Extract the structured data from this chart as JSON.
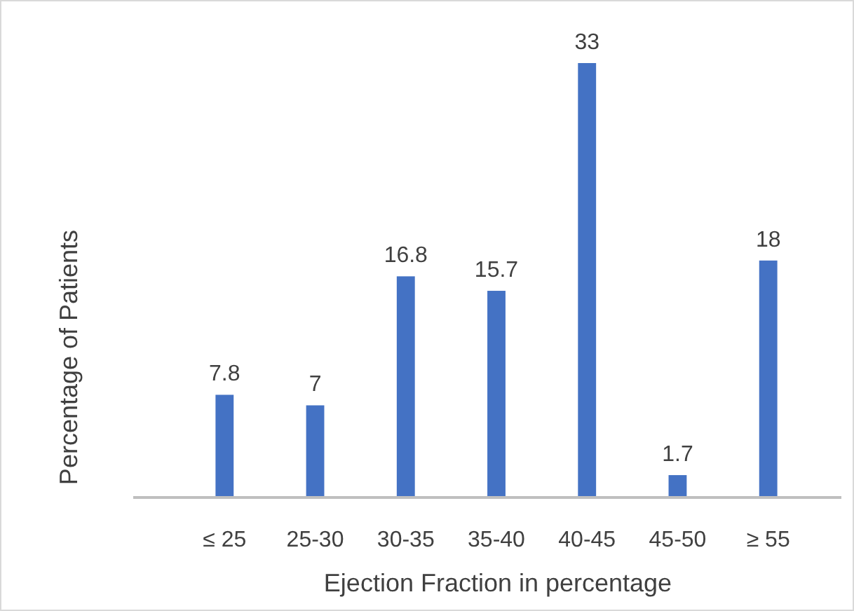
{
  "chart_data": {
    "type": "bar",
    "xlabel": "Ejection Fraction in percentage",
    "ylabel": "Percentage of Patients",
    "categories": [
      "≤ 25",
      "25-30",
      "30-35",
      "35-40",
      "40-45",
      "45-50",
      "≥ 55"
    ],
    "values": [
      7.8,
      7,
      16.8,
      15.7,
      33,
      1.7,
      18
    ],
    "color": "#4472c4",
    "data_labels": true
  }
}
